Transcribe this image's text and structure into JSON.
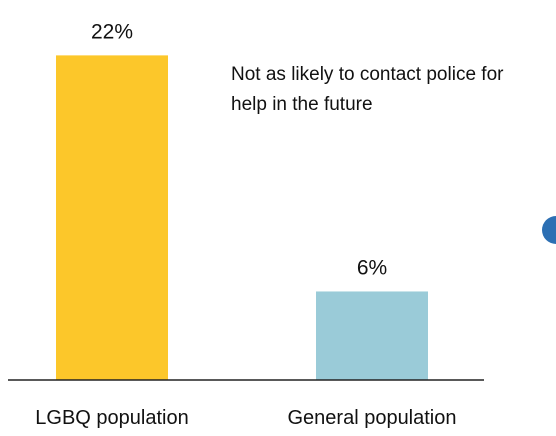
{
  "chart_data": {
    "type": "bar",
    "categories": [
      "LGBQ population",
      "General population"
    ],
    "values": [
      22,
      6
    ],
    "value_labels": [
      "22%",
      "6%"
    ],
    "unit": "%",
    "ylim": [
      0,
      22.5
    ],
    "title": "",
    "xlabel": "",
    "ylabel": "",
    "grid": false,
    "annotation": {
      "lines": [
        "Not as likely to contact police for",
        "help in the future"
      ]
    },
    "colors": [
      "#FCC72A",
      "#9ACBD8"
    ],
    "accent_dot_color": "#2C6FB3",
    "axis_color": "#222222"
  }
}
